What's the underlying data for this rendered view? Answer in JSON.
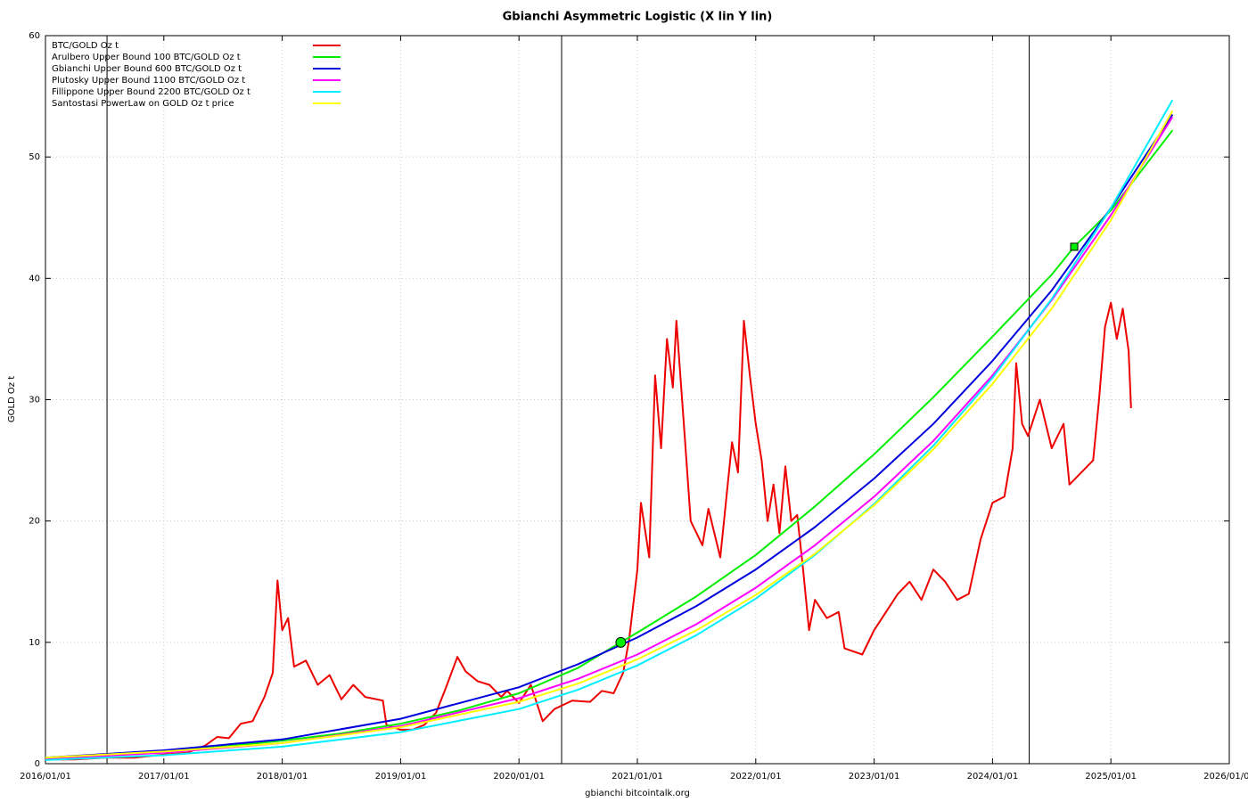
{
  "chart_data": {
    "type": "line",
    "title": "Gbianchi Asymmetric Logistic (X lin Y lin)",
    "xlabel": "gbianchi bitcointalk.org",
    "ylabel": "GOLD Oz t",
    "xlim": [
      2016,
      2026
    ],
    "ylim": [
      0,
      60
    ],
    "xticks": [
      {
        "value": 2016,
        "label": "2016/01/01"
      },
      {
        "value": 2017,
        "label": "2017/01/01"
      },
      {
        "value": 2018,
        "label": "2018/01/01"
      },
      {
        "value": 2019,
        "label": "2019/01/01"
      },
      {
        "value": 2020,
        "label": "2020/01/01"
      },
      {
        "value": 2021,
        "label": "2021/01/01"
      },
      {
        "value": 2022,
        "label": "2022/01/01"
      },
      {
        "value": 2023,
        "label": "2023/01/01"
      },
      {
        "value": 2024,
        "label": "2024/01/01"
      },
      {
        "value": 2025,
        "label": "2025/01/01"
      },
      {
        "value": 2026,
        "label": "2026/01/01"
      }
    ],
    "yticks": [
      0,
      10,
      20,
      30,
      40,
      50,
      60
    ],
    "grid": true,
    "legend": "top-left",
    "vlines": [
      2016.52,
      2020.36,
      2024.31
    ],
    "points": [
      {
        "x": 2020.86,
        "y": 10,
        "shape": "circle",
        "color": "#00ee00"
      },
      {
        "x": 2024.69,
        "y": 42.6,
        "shape": "square",
        "color": "#00ee00"
      }
    ],
    "series": [
      {
        "name": "BTC/GOLD Oz t",
        "color": "#ee0000",
        "x": [
          2016.0,
          2016.25,
          2016.5,
          2016.75,
          2017.0,
          2017.2,
          2017.35,
          2017.45,
          2017.55,
          2017.65,
          2017.75,
          2017.85,
          2017.92,
          2017.96,
          2018.0,
          2018.05,
          2018.1,
          2018.2,
          2018.3,
          2018.4,
          2018.5,
          2018.6,
          2018.7,
          2018.85,
          2018.88,
          2019.0,
          2019.1,
          2019.2,
          2019.3,
          2019.38,
          2019.48,
          2019.55,
          2019.65,
          2019.75,
          2019.85,
          2019.9,
          2020.0,
          2020.1,
          2020.2,
          2020.3,
          2020.45,
          2020.6,
          2020.7,
          2020.8,
          2020.88,
          2020.93,
          2021.0,
          2021.03,
          2021.1,
          2021.15,
          2021.2,
          2021.25,
          2021.3,
          2021.33,
          2021.4,
          2021.45,
          2021.55,
          2021.6,
          2021.7,
          2021.8,
          2021.85,
          2021.9,
          2021.95,
          2022.0,
          2022.05,
          2022.1,
          2022.15,
          2022.2,
          2022.25,
          2022.3,
          2022.35,
          2022.4,
          2022.45,
          2022.5,
          2022.6,
          2022.7,
          2022.75,
          2022.9,
          2023.0,
          2023.1,
          2023.2,
          2023.3,
          2023.4,
          2023.5,
          2023.6,
          2023.7,
          2023.8,
          2023.9,
          2024.0,
          2024.1,
          2024.17,
          2024.2,
          2024.25,
          2024.3,
          2024.4,
          2024.5,
          2024.6,
          2024.65,
          2024.75,
          2024.85,
          2024.9,
          2024.95,
          2025.0,
          2025.05,
          2025.1,
          2025.15,
          2025.17
        ],
        "values": [
          0.35,
          0.35,
          0.5,
          0.5,
          0.75,
          0.9,
          1.5,
          2.2,
          2.1,
          3.3,
          3.5,
          5.5,
          7.5,
          15.1,
          11,
          12,
          8,
          8.5,
          6.5,
          7.3,
          5.3,
          6.5,
          5.5,
          5.2,
          3.2,
          2.8,
          2.8,
          3.2,
          4.2,
          6.2,
          8.8,
          7.6,
          6.8,
          6.5,
          5.5,
          6.0,
          5.0,
          6.5,
          3.5,
          4.5,
          5.2,
          5.1,
          6.0,
          5.8,
          7.5,
          10.2,
          16,
          21.5,
          17,
          32,
          26,
          35,
          31,
          36.5,
          27,
          20,
          18,
          21,
          17,
          26.5,
          24,
          36.5,
          32,
          28,
          25,
          20,
          23,
          19,
          24.5,
          20,
          20.5,
          16,
          11,
          13.5,
          12,
          12.5,
          9.5,
          9,
          11,
          12.5,
          14,
          15,
          13.5,
          16,
          15,
          13.5,
          14,
          18.5,
          21.5,
          22,
          26,
          33,
          28,
          27,
          30,
          26,
          28,
          23,
          24,
          25,
          30,
          36,
          38,
          35,
          37.5,
          34,
          29.3
        ]
      },
      {
        "name": "Arulbero Upper Bound 100  BTC/GOLD Oz t",
        "color": "#00ee00",
        "x": [
          2016,
          2016.5,
          2017,
          2017.5,
          2018,
          2018.5,
          2019,
          2019.5,
          2020,
          2020.5,
          2020.86,
          2021,
          2021.5,
          2022,
          2022.5,
          2023,
          2023.5,
          2024,
          2024.5,
          2024.69,
          2025,
          2025.52
        ],
        "values": [
          0.5,
          0.7,
          1.0,
          1.4,
          1.9,
          2.5,
          3.3,
          4.4,
          5.8,
          7.9,
          10,
          10.8,
          13.8,
          17.2,
          21.2,
          25.5,
          30.2,
          35.2,
          40.3,
          42.6,
          45.6,
          52.2
        ]
      },
      {
        "name": "Gbianchi Upper Bound 600  BTC/GOLD Oz t",
        "color": "#0000dd",
        "x": [
          2016,
          2017,
          2018,
          2019,
          2020,
          2020.5,
          2021,
          2021.5,
          2022,
          2022.5,
          2023,
          2023.5,
          2024,
          2024.5,
          2025,
          2025.52
        ],
        "values": [
          0.5,
          1.1,
          2.0,
          3.7,
          6.3,
          8.2,
          10.4,
          13.0,
          16.0,
          19.5,
          23.5,
          28.0,
          33.2,
          39.0,
          45.8,
          53.5
        ]
      },
      {
        "name": "Plutosky Upper Bound 1100  BTC/GOLD Oz t",
        "color": "#ff00ff",
        "x": [
          2016,
          2017,
          2018,
          2019,
          2020,
          2020.5,
          2021,
          2021.5,
          2022,
          2022.5,
          2023,
          2023.5,
          2024,
          2024.5,
          2025,
          2025.52
        ],
        "values": [
          0.4,
          0.9,
          1.7,
          3.1,
          5.4,
          7.0,
          9.0,
          11.5,
          14.5,
          18.0,
          22.0,
          26.6,
          32.0,
          38.2,
          45.2,
          53.3
        ]
      },
      {
        "name": "Fillippone Upper Bound 2200  BTC/GOLD Oz t",
        "color": "#00eeff",
        "x": [
          2016,
          2017,
          2018,
          2019,
          2020,
          2020.5,
          2021,
          2021.5,
          2022,
          2022.5,
          2023,
          2023.5,
          2024,
          2024.5,
          2025,
          2025.52
        ],
        "values": [
          0.3,
          0.7,
          1.4,
          2.6,
          4.5,
          6.1,
          8.1,
          10.6,
          13.6,
          17.2,
          21.4,
          26.2,
          31.8,
          38.3,
          45.8,
          54.7
        ]
      },
      {
        "name": "Santostasi PowerLaw on GOLD Oz t price",
        "color": "#ffff00",
        "x": [
          2016,
          2017,
          2018,
          2019,
          2020,
          2020.5,
          2021,
          2021.5,
          2022,
          2022.5,
          2023,
          2023.5,
          2024,
          2024.5,
          2025,
          2025.52
        ],
        "values": [
          0.5,
          1.0,
          1.7,
          3.0,
          5.1,
          6.6,
          8.6,
          11.0,
          13.9,
          17.3,
          21.3,
          25.9,
          31.3,
          37.5,
          44.8,
          53.8
        ]
      }
    ]
  }
}
